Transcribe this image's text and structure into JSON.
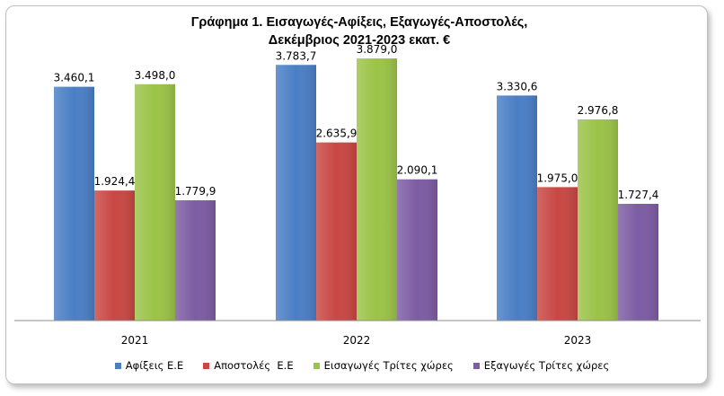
{
  "chart_data": {
    "type": "bar",
    "title_line1": "Γράφημα 1. Εισαγωγές-Αφίξεις, Εξαγωγές-Αποστολές,",
    "title_line2": "Δεκέμβριος 2021-2023 εκατ. €",
    "categories": [
      "2021",
      "2022",
      "2023"
    ],
    "series": [
      {
        "name": "Αφίξεις Ε.Ε",
        "color": "#4a7ec5",
        "values": [
          3460.1,
          3783.7,
          3330.6
        ],
        "labels": [
          "3.460,1",
          "3.783,7",
          "3.330,6"
        ]
      },
      {
        "name": "Αποστολές  Ε.Ε",
        "color": "#c84743",
        "values": [
          1924.4,
          2635.9,
          1975.0
        ],
        "labels": [
          "1.924,4",
          "2.635,9",
          "1.975,0"
        ]
      },
      {
        "name": "Εισαγωγές Τρίτες χώρες",
        "color": "#9bc347",
        "values": [
          3498.0,
          3879.0,
          2976.8
        ],
        "labels": [
          "3.498,0",
          "3.879,0",
          "2.976,8"
        ]
      },
      {
        "name": "Εξαγωγές Τρίτες χώρες",
        "color": "#7c5ca3",
        "values": [
          1779.9,
          2090.1,
          1727.4
        ],
        "labels": [
          "1.779,9",
          "2.090,1",
          "1.727,4"
        ]
      }
    ],
    "ylim": [
      0,
      4000
    ],
    "legend_position": "bottom",
    "grid": false
  }
}
